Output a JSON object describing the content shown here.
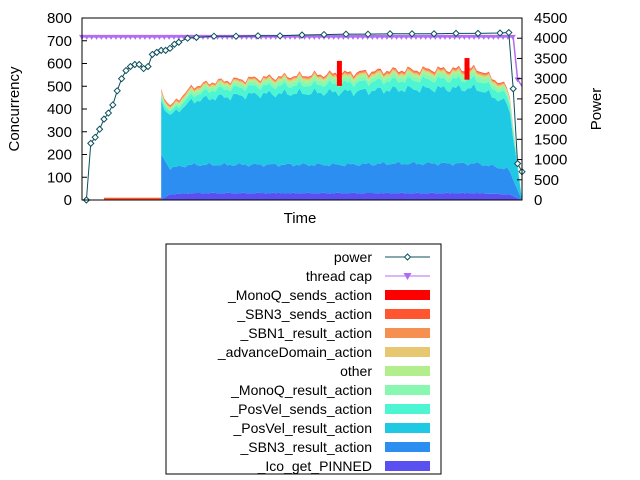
{
  "chart_data": {
    "type": "area",
    "title": "",
    "xlabel": "Time",
    "ylabel": "Concurrency",
    "y2label": "Power",
    "ylim": [
      0,
      800
    ],
    "y2lim": [
      0,
      4500
    ],
    "yticks": [
      "0",
      "100",
      "200",
      "300",
      "400",
      "500",
      "600",
      "700",
      "800"
    ],
    "y2ticks": [
      "0",
      "500",
      "1000",
      "1500",
      "2000",
      "2500",
      "3000",
      "3500",
      "4000",
      "4500"
    ],
    "grid": false,
    "legend_position": "below",
    "x_range": [
      0,
      100
    ],
    "stack_span": [
      18,
      100
    ],
    "segments": [
      {
        "start": 18,
        "values": [
          0,
          195,
          235,
          20,
          10,
          5,
          5,
          8,
          3
        ]
      },
      {
        "start": 20,
        "values": [
          25,
          115,
          230,
          15,
          8,
          5,
          5,
          6,
          3
        ]
      },
      {
        "start": 25,
        "values": [
          30,
          125,
          280,
          25,
          15,
          8,
          5,
          6,
          4
        ]
      },
      {
        "start": 30,
        "values": [
          30,
          125,
          295,
          35,
          15,
          8,
          5,
          5,
          3
        ]
      },
      {
        "start": 40,
        "values": [
          30,
          125,
          310,
          35,
          15,
          8,
          5,
          5,
          4
        ]
      },
      {
        "start": 50,
        "values": [
          30,
          125,
          315,
          35,
          18,
          10,
          6,
          5,
          4
        ]
      },
      {
        "start": 60,
        "values": [
          30,
          125,
          320,
          38,
          18,
          10,
          6,
          6,
          5
        ]
      },
      {
        "start": 70,
        "values": [
          30,
          130,
          325,
          40,
          18,
          10,
          6,
          6,
          5
        ]
      },
      {
        "start": 80,
        "values": [
          30,
          130,
          330,
          40,
          18,
          10,
          6,
          6,
          5
        ]
      },
      {
        "start": 90,
        "values": [
          30,
          130,
          330,
          40,
          20,
          10,
          6,
          6,
          5
        ]
      },
      {
        "start": 97,
        "values": [
          25,
          110,
          285,
          35,
          15,
          8,
          5,
          5,
          4
        ]
      },
      {
        "start": 100,
        "values": [
          0,
          0,
          0,
          0,
          0,
          0,
          0,
          0,
          0
        ]
      }
    ],
    "pre_stack_bar": {
      "x": [
        5,
        20
      ],
      "value": 10
    },
    "spikes": [
      {
        "x": 58.5,
        "series": "_MonoQ_sends_action",
        "value": 110
      },
      {
        "x": 87.5,
        "series": "_MonoQ_sends_action",
        "value": 95
      }
    ],
    "series": [
      {
        "name": "_Ico_get_PINNED",
        "color": "#5a4ff0"
      },
      {
        "name": "_SBN3_result_action",
        "color": "#2b8ef0"
      },
      {
        "name": "_PosVel_result_action",
        "color": "#1fc8e3"
      },
      {
        "name": "_PosVel_sends_action",
        "color": "#4df5d3"
      },
      {
        "name": "_MonoQ_result_action",
        "color": "#88f7b0"
      },
      {
        "name": "other",
        "color": "#b2ee8c"
      },
      {
        "name": "_advanceDomain_action",
        "color": "#e8c771"
      },
      {
        "name": "_SBN1_result_action",
        "color": "#f59050"
      },
      {
        "name": "_SBN3_sends_action",
        "color": "#ff5630"
      },
      {
        "name": "_MonoQ_sends_action",
        "color": "#ff0000"
      }
    ],
    "power": {
      "name": "power",
      "color": "#0b4f5c",
      "axis": "right",
      "points": [
        [
          1,
          0
        ],
        [
          2,
          1400
        ],
        [
          3,
          1550
        ],
        [
          4,
          1750
        ],
        [
          5,
          2000
        ],
        [
          6,
          2150
        ],
        [
          7,
          2350
        ],
        [
          8,
          2700
        ],
        [
          9,
          3000
        ],
        [
          10,
          3200
        ],
        [
          11,
          3300
        ],
        [
          12,
          3350
        ],
        [
          13,
          3350
        ],
        [
          14,
          3250
        ],
        [
          15,
          3300
        ],
        [
          16,
          3600
        ],
        [
          17,
          3650
        ],
        [
          18,
          3700
        ],
        [
          19,
          3700
        ],
        [
          20,
          3750
        ],
        [
          21,
          3850
        ],
        [
          22,
          3900
        ],
        [
          24,
          4000
        ],
        [
          26,
          4020
        ],
        [
          30,
          4050
        ],
        [
          35,
          4050
        ],
        [
          40,
          4060
        ],
        [
          45,
          4060
        ],
        [
          50,
          4080
        ],
        [
          55,
          4090
        ],
        [
          60,
          4100
        ],
        [
          65,
          4100
        ],
        [
          70,
          4110
        ],
        [
          75,
          4110
        ],
        [
          80,
          4110
        ],
        [
          85,
          4120
        ],
        [
          90,
          4120
        ],
        [
          95,
          4130
        ],
        [
          97,
          4140
        ],
        [
          98,
          2750
        ],
        [
          99,
          900
        ],
        [
          100,
          700
        ]
      ]
    },
    "thread_cap": {
      "name": "thread cap",
      "color": "#b06cf2",
      "axis": "left",
      "points": [
        [
          0,
          717
        ],
        [
          98,
          717
        ],
        [
          99,
          530
        ],
        [
          100,
          500
        ]
      ]
    }
  }
}
